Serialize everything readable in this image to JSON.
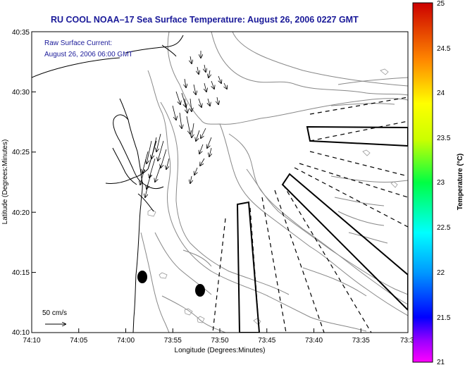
{
  "title": "RU COOL  NOAA–17  Sea Surface Temperature:  August 26, 2006 0227 GMT",
  "inset": {
    "line1": "Raw Surface Current:",
    "line2": "August 26, 2006 06:00 GMT"
  },
  "scale_label": "50 cm/s",
  "axes": {
    "xlabel": "Longitude (Degrees:Minutes)",
    "ylabel": "Latitude (Degrees:Minutes)",
    "x_ticks": [
      "74:10",
      "74:05",
      "74:00",
      "73:55",
      "73:50",
      "73:45",
      "73:40",
      "73:35",
      "73:3"
    ],
    "y_ticks": [
      "40:10",
      "40:15",
      "40:20",
      "40:25",
      "40:30",
      "40:35"
    ]
  },
  "colorbar": {
    "label": "Temperature (°C)",
    "ticks": [
      "21",
      "21.5",
      "22",
      "22.5",
      "23",
      "23.5",
      "24",
      "24.5",
      "25"
    ],
    "min": 21,
    "max": 25
  }
}
